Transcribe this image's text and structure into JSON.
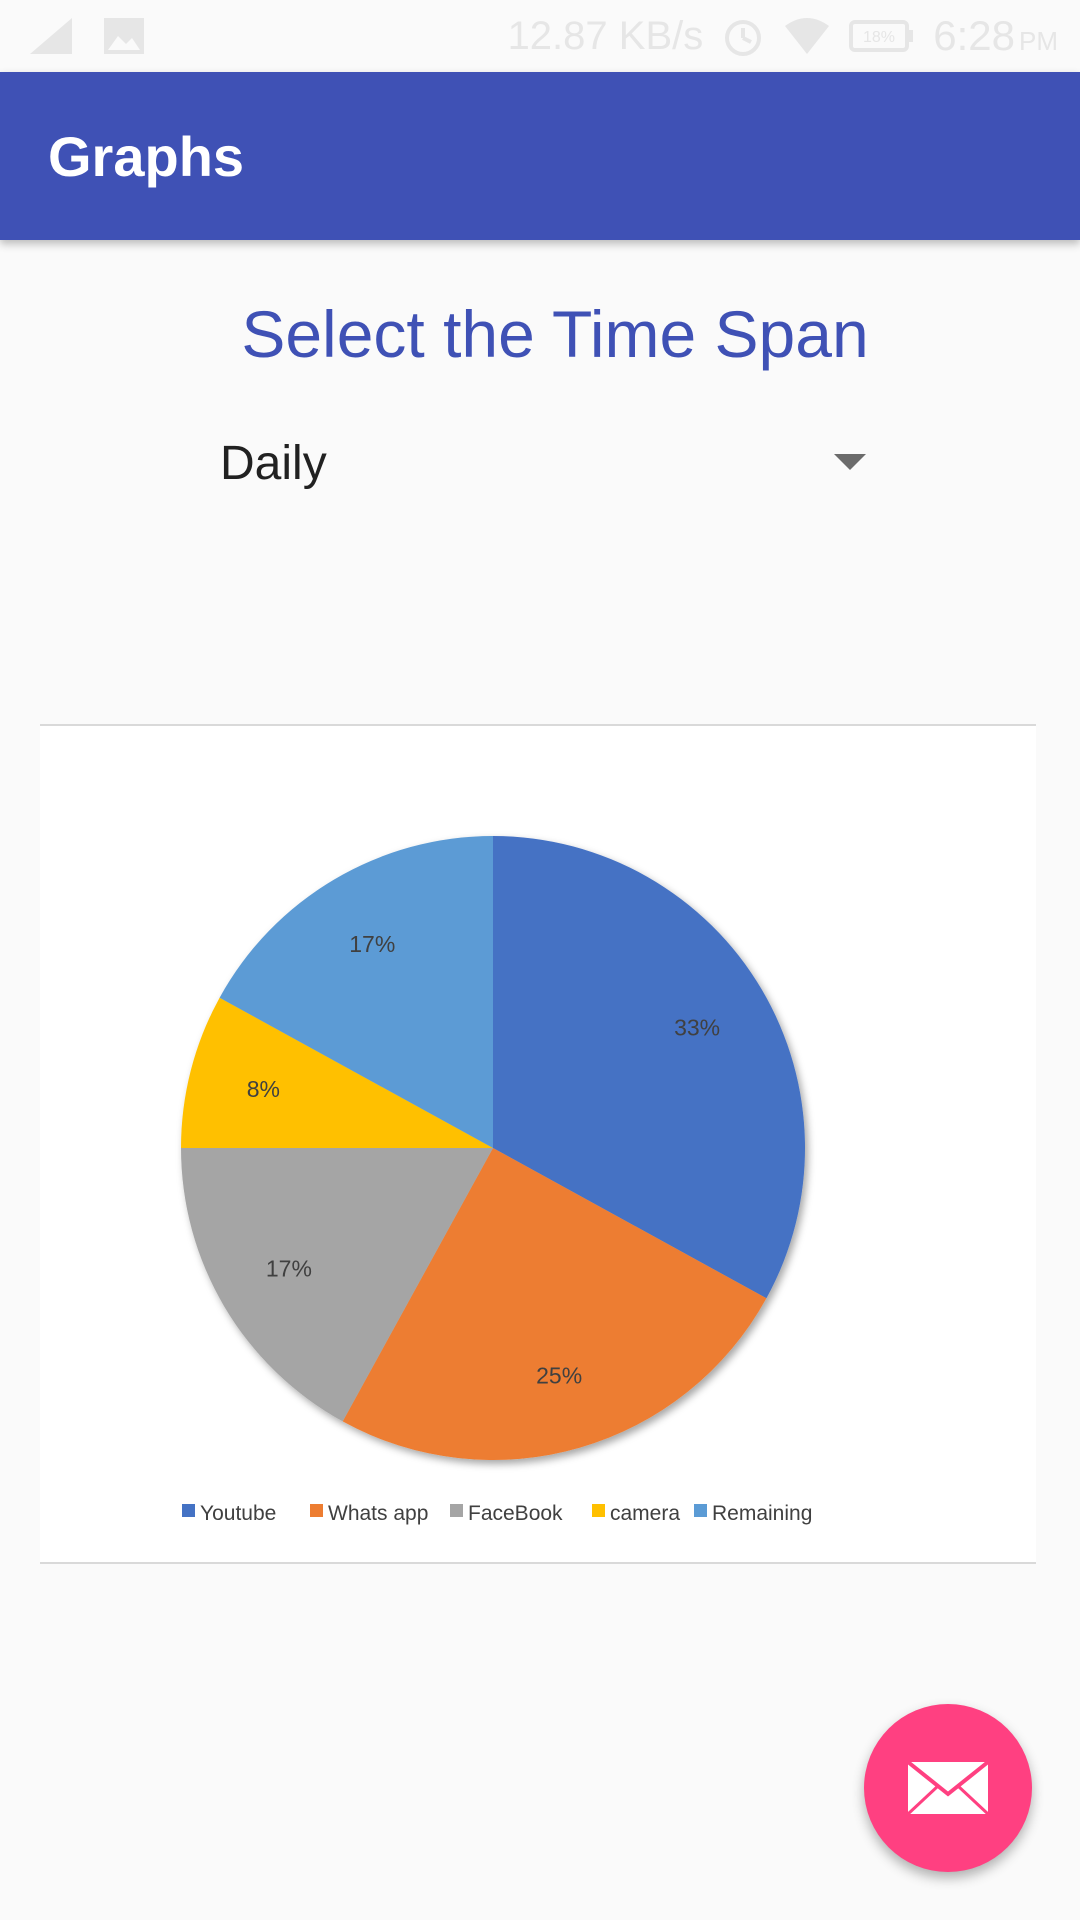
{
  "status_bar": {
    "network_speed": "12.87 KB/s",
    "battery": "18%",
    "time": "6:28",
    "ampm": "PM",
    "icons": [
      "signal-icon",
      "image-icon",
      "alarm-icon",
      "wifi-icon",
      "battery-icon"
    ]
  },
  "app_bar": {
    "title": "Graphs"
  },
  "time_span": {
    "heading": "Select the Time Span",
    "selected": "Daily"
  },
  "chart_data": {
    "type": "pie",
    "title": "",
    "legend_position": "bottom",
    "categories": [
      "Youtube",
      "Whats app",
      "FaceBook",
      "camera",
      "Remaining"
    ],
    "values": [
      33,
      25,
      17,
      8,
      17
    ],
    "labels": [
      "33%",
      "25%",
      "17%",
      "8%",
      "17%"
    ],
    "colors": [
      "#4472c4",
      "#ed7d31",
      "#a5a5a5",
      "#ffc000",
      "#5b9bd5"
    ]
  },
  "fab": {
    "icon": "envelope-icon"
  },
  "colors": {
    "primary": "#3f51b5",
    "accent": "#ff4081",
    "background": "#fafafa"
  }
}
